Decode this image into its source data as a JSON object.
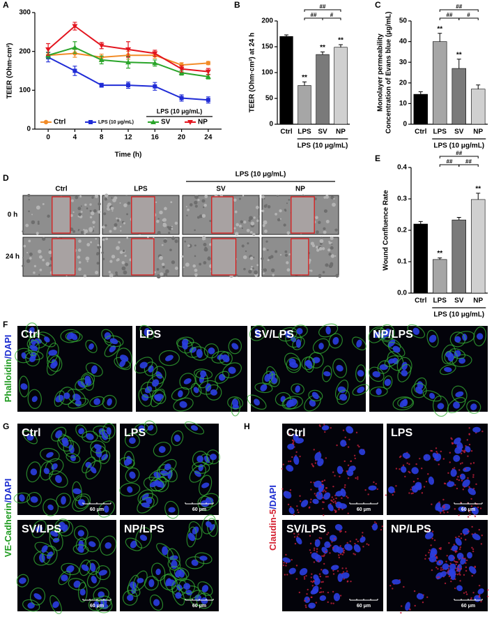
{
  "chart_data": [
    {
      "type": "line",
      "panel": "A",
      "xlabel": "Time (h)",
      "ylabel": "TEER (Ohm·cm²)",
      "x": [
        0,
        4,
        8,
        12,
        16,
        20,
        24
      ],
      "xlim": [
        -2,
        26
      ],
      "xticks": [
        0,
        4,
        8,
        12,
        16,
        20,
        24
      ],
      "ylim": [
        0,
        300
      ],
      "yticks": [
        0,
        100,
        200,
        300
      ],
      "series": [
        {
          "name": "Ctrl",
          "color": "#f28c28",
          "marker": "circle",
          "values": [
            190,
            195,
            185,
            190,
            190,
            165,
            170
          ],
          "errors": [
            8,
            10,
            8,
            10,
            8,
            6,
            4
          ]
        },
        {
          "name": "LPS (10 μg/mL)",
          "color": "#1f2bd6",
          "marker": "square",
          "values": [
            185,
            150,
            113,
            113,
            110,
            80,
            75
          ],
          "errors": [
            12,
            12,
            5,
            8,
            10,
            8,
            8
          ]
        },
        {
          "name": "SV",
          "color": "#2aa52a",
          "marker": "triangle-up",
          "values": [
            190,
            210,
            178,
            172,
            170,
            145,
            135
          ],
          "errors": [
            8,
            15,
            10,
            15,
            8,
            6,
            6
          ]
        },
        {
          "name": "NP",
          "color": "#e3141e",
          "marker": "triangle-down",
          "values": [
            205,
            265,
            215,
            205,
            195,
            155,
            148
          ],
          "errors": [
            15,
            10,
            8,
            20,
            8,
            8,
            8
          ]
        }
      ],
      "group_label": "LPS (10 μg/mL)",
      "group_series": [
        "SV",
        "NP"
      ]
    },
    {
      "type": "bar",
      "panel": "B",
      "ylabel": "TEER (Ohm·cm²) at 24 h",
      "categories": [
        "Ctrl",
        "LPS",
        "SV",
        "NP"
      ],
      "values": [
        170,
        75,
        135,
        149
      ],
      "errors": [
        3,
        7,
        5,
        5
      ],
      "colors": [
        "#000000",
        "#a6a6a6",
        "#7a7a7a",
        "#d0d0d0"
      ],
      "ylim": [
        0,
        200
      ],
      "yticks": [
        0,
        50,
        100,
        150,
        200
      ],
      "significance": [
        null,
        "**",
        "**",
        "**"
      ],
      "comparisons": [
        {
          "from": "LPS",
          "to": "NP",
          "text": "##"
        },
        {
          "from": "LPS",
          "to": "SV",
          "text": "##"
        },
        {
          "from": "SV",
          "to": "NP",
          "text": "#"
        }
      ],
      "group_label": "LPS (10 μg/mL)",
      "group_categories": [
        "LPS",
        "SV",
        "NP"
      ]
    },
    {
      "type": "bar",
      "panel": "C",
      "ylabel": [
        "Monolayer permeability",
        "Concentration of Evans blue (μg/mL)"
      ],
      "categories": [
        "Ctrl",
        "LPS",
        "SV",
        "NP"
      ],
      "values": [
        14.5,
        40,
        27,
        17
      ],
      "errors": [
        1.2,
        4,
        4.5,
        2
      ],
      "colors": [
        "#000000",
        "#a6a6a6",
        "#7a7a7a",
        "#d0d0d0"
      ],
      "ylim": [
        0,
        50
      ],
      "yticks": [
        0,
        10,
        20,
        30,
        40,
        50
      ],
      "significance": [
        null,
        "**",
        "**",
        null
      ],
      "comparisons": [
        {
          "from": "LPS",
          "to": "NP",
          "text": "##"
        },
        {
          "from": "LPS",
          "to": "SV",
          "text": "##"
        },
        {
          "from": "SV",
          "to": "NP",
          "text": "#"
        }
      ],
      "group_label": "LPS (10 μg/mL)",
      "group_categories": [
        "LPS",
        "SV",
        "NP"
      ]
    },
    {
      "type": "bar",
      "panel": "E",
      "ylabel": "Wound Confluence Rate",
      "categories": [
        "Ctrl",
        "LPS",
        "SV",
        "NP"
      ],
      "values": [
        0.22,
        0.107,
        0.233,
        0.298
      ],
      "errors": [
        0.008,
        0.005,
        0.008,
        0.02
      ],
      "colors": [
        "#000000",
        "#a6a6a6",
        "#7a7a7a",
        "#d0d0d0"
      ],
      "ylim": [
        0,
        0.4
      ],
      "yticks": [
        {
          "value": 0,
          "label": "0.0"
        },
        0.1,
        0.2,
        0.3,
        0.4
      ],
      "significance": [
        null,
        "**",
        null,
        "**"
      ],
      "comparisons": [
        {
          "from": "LPS",
          "to": "NP",
          "text": "##"
        },
        {
          "from": "LPS",
          "to": "SV",
          "text": "##"
        },
        {
          "from": "SV",
          "to": "NP",
          "text": "##"
        }
      ],
      "group_label": "LPS (10 μg/mL)",
      "group_categories": [
        "LPS",
        "SV",
        "NP"
      ]
    }
  ],
  "images": {
    "D": {
      "panel": "D",
      "group_label": "LPS (10 μg/mL)",
      "columns": [
        "Ctrl",
        "LPS",
        "SV",
        "NP"
      ],
      "rows": [
        "0 h",
        "24 h"
      ]
    },
    "F": {
      "panel": "F",
      "stain": [
        "Phalloidin",
        "/DAPI"
      ],
      "labels": [
        "Ctrl",
        "LPS",
        "SV/LPS",
        "NP/LPS"
      ]
    },
    "G": {
      "panel": "G",
      "stain": [
        "VE-Cadherin",
        "/DAPI"
      ],
      "labels": [
        "Ctrl",
        "LPS",
        "SV/LPS",
        "NP/LPS"
      ],
      "scale": "60 μm"
    },
    "H": {
      "panel": "H",
      "stain": [
        "Claudin-5",
        "/DAPI"
      ],
      "labels": [
        "Ctrl",
        "LPS",
        "SV/LPS",
        "NP/LPS"
      ],
      "scale": "60 μm"
    }
  }
}
